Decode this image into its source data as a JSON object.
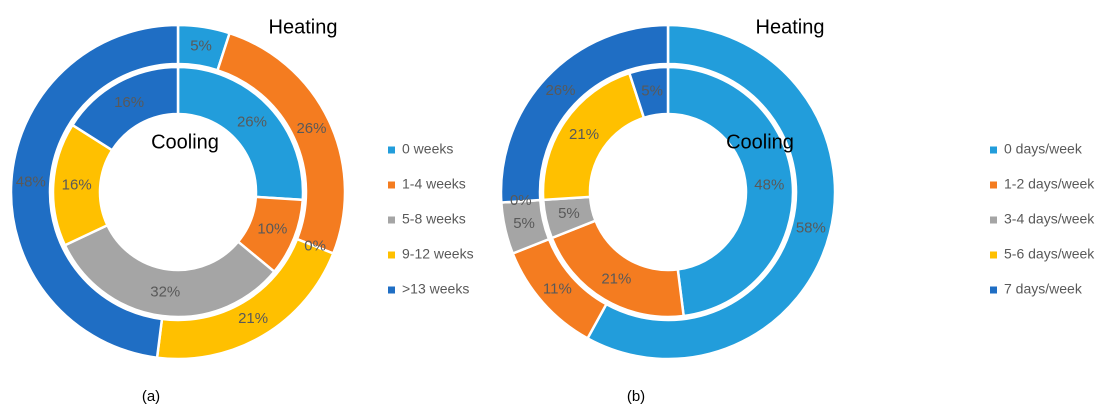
{
  "chart_data": [
    {
      "type": "donut",
      "caption": "(a)",
      "categories": [
        "0 weeks",
        "1-4 weeks",
        "5-8 weeks",
        "9-12 weeks",
        ">13 weeks"
      ],
      "colors": [
        "#229ddb",
        "#f47c20",
        "#a5a5a5",
        "#ffc000",
        "#1f6ec4"
      ],
      "series": [
        {
          "name": "Heating",
          "ring": "outer",
          "values": [
            5,
            26,
            0,
            21,
            48
          ],
          "value_labels": [
            "5%",
            "26%",
            "0%",
            "21%",
            "48%"
          ]
        },
        {
          "name": "Cooling",
          "ring": "inner",
          "values": [
            26,
            10,
            32,
            16,
            16
          ],
          "value_labels": [
            "26%",
            "10%",
            "32%",
            "16%",
            "16%"
          ]
        }
      ]
    },
    {
      "type": "donut",
      "caption": "(b)",
      "categories": [
        "0 days/week",
        "1-2 days/week",
        "3-4 days/week",
        "5-6 days/week",
        "7 days/week"
      ],
      "colors": [
        "#229ddb",
        "#f47c20",
        "#a5a5a5",
        "#ffc000",
        "#1f6ec4"
      ],
      "series": [
        {
          "name": "Heating",
          "ring": "outer",
          "values": [
            58,
            11,
            5,
            0,
            26
          ],
          "value_labels": [
            "58%",
            "11%",
            "5%",
            "0%",
            "26%"
          ]
        },
        {
          "name": "Cooling",
          "ring": "inner",
          "values": [
            48,
            21,
            5,
            21,
            5
          ],
          "value_labels": [
            "48%",
            "21%",
            "5%",
            "21%",
            "5%"
          ]
        }
      ]
    }
  ]
}
